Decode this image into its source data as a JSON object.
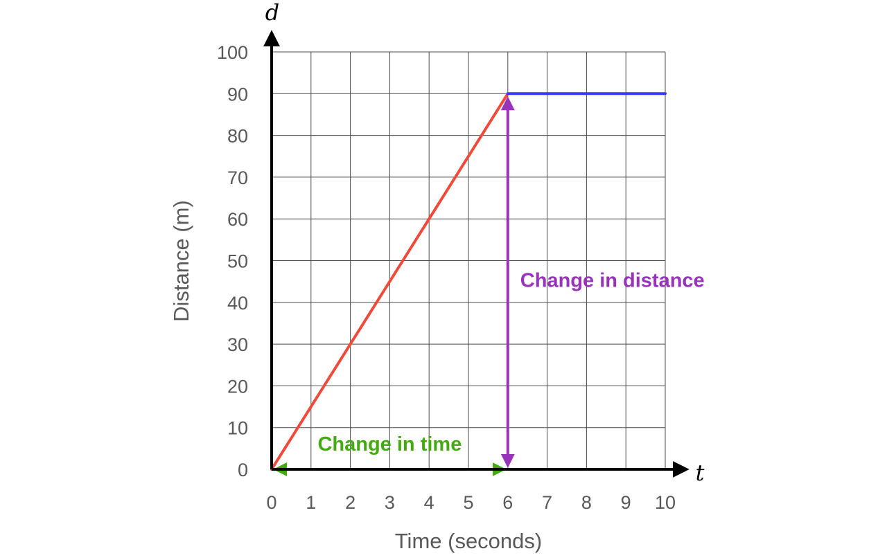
{
  "chart_data": {
    "type": "line",
    "xlabel": "Time (seconds)",
    "ylabel": "Distance (m)",
    "x_axis_var": "t",
    "y_axis_var": "d",
    "xlim": [
      0,
      10
    ],
    "ylim": [
      0,
      100
    ],
    "x_ticks": [
      "0",
      "1",
      "2",
      "3",
      "4",
      "5",
      "6",
      "7",
      "8",
      "9",
      "10"
    ],
    "y_ticks": [
      "0",
      "10",
      "20",
      "30",
      "40",
      "50",
      "60",
      "70",
      "80",
      "90",
      "100"
    ],
    "grid": true,
    "series": [
      {
        "color": "#f04a3a",
        "x": [
          0,
          6
        ],
        "y": [
          0,
          90
        ]
      },
      {
        "color": "#3a3af0",
        "x": [
          6,
          10
        ],
        "y": [
          90,
          90
        ]
      }
    ],
    "annotations": [
      {
        "text": "Change in time",
        "color": "#44aa11",
        "from": [
          0,
          0
        ],
        "to": [
          6,
          0
        ],
        "double_arrow": true
      },
      {
        "text": "Change in distance",
        "color": "#9933bb",
        "from": [
          6,
          0
        ],
        "to": [
          6,
          90
        ],
        "double_arrow": true
      }
    ]
  }
}
